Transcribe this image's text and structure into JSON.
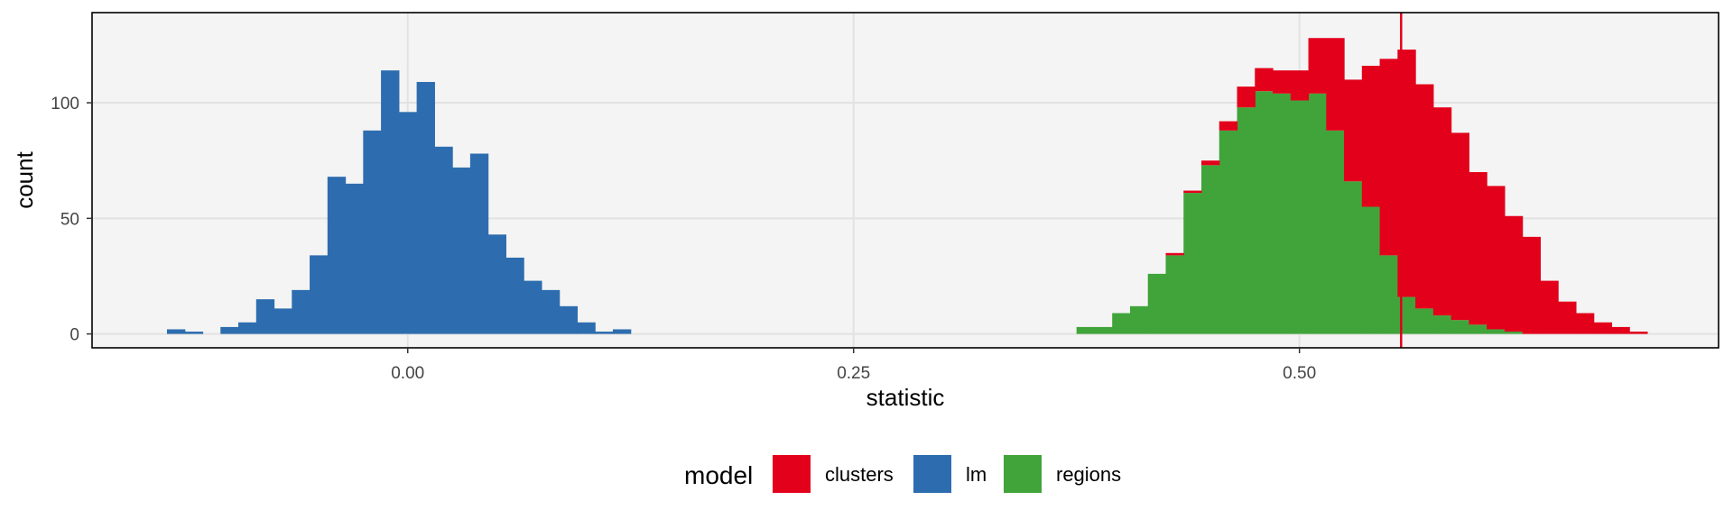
{
  "chart_data": {
    "type": "bar",
    "subtype": "stacked-histogram",
    "xlabel": "statistic",
    "ylabel": "count",
    "xlim": [
      -0.177,
      0.735
    ],
    "ylim": [
      -6,
      139
    ],
    "x_ticks": [
      0.0,
      0.25,
      0.5
    ],
    "x_tick_labels": [
      "0.00",
      "0.25",
      "0.50"
    ],
    "y_ticks": [
      0,
      50,
      100
    ],
    "y_tick_labels": [
      "0",
      "50",
      "100"
    ],
    "grid": true,
    "bin_width": 0.01,
    "reference_line": {
      "x": 0.557,
      "color": "#E3001B"
    },
    "legend": {
      "title": "model",
      "position": "bottom",
      "entries": [
        {
          "label": "clusters",
          "color": "#E3001B"
        },
        {
          "label": "lm",
          "color": "#2D6DAF"
        },
        {
          "label": "regions",
          "color": "#41A43A"
        }
      ]
    },
    "series": [
      {
        "name": "lm",
        "color": "#2D6DAF",
        "bins_start": [
          -0.135,
          -0.125,
          -0.115,
          -0.105,
          -0.095,
          -0.085,
          -0.075,
          -0.065,
          -0.055,
          -0.045,
          -0.035,
          -0.025,
          -0.015,
          -0.005,
          0.005,
          0.015,
          0.025,
          0.035,
          0.045,
          0.055,
          0.065,
          0.075,
          0.085,
          0.095,
          0.105,
          0.115
        ],
        "counts": [
          2,
          1,
          0,
          3,
          5,
          15,
          11,
          19,
          34,
          68,
          65,
          88,
          114,
          96,
          109,
          81,
          72,
          78,
          43,
          33,
          23,
          19,
          12,
          5,
          1,
          2
        ]
      },
      {
        "name": "regions",
        "color": "#41A43A",
        "bins_start": [
          0.375,
          0.385,
          0.395,
          0.405,
          0.415,
          0.425,
          0.435,
          0.445,
          0.455,
          0.465,
          0.475,
          0.485,
          0.495,
          0.505,
          0.515,
          0.525,
          0.535,
          0.545,
          0.555,
          0.565,
          0.575,
          0.585,
          0.595,
          0.605,
          0.615,
          0.625,
          0.635,
          0.645,
          0.655,
          0.665,
          0.675,
          0.685
        ],
        "counts": [
          3,
          3,
          9,
          12,
          26,
          34,
          61,
          73,
          88,
          98,
          105,
          104,
          101,
          104,
          88,
          66,
          55,
          34,
          16,
          11,
          8,
          6,
          4,
          2,
          1,
          0,
          0,
          0,
          0,
          0,
          0,
          0
        ]
      },
      {
        "name": "clusters",
        "color": "#E3001B",
        "bins_start": [
          0.375,
          0.385,
          0.395,
          0.405,
          0.415,
          0.425,
          0.435,
          0.445,
          0.455,
          0.465,
          0.475,
          0.485,
          0.495,
          0.505,
          0.515,
          0.525,
          0.535,
          0.545,
          0.555,
          0.565,
          0.575,
          0.585,
          0.595,
          0.605,
          0.615,
          0.625,
          0.635,
          0.645,
          0.655,
          0.665,
          0.675,
          0.685
        ],
        "counts": [
          0,
          0,
          0,
          0,
          0,
          1,
          1,
          2,
          4,
          9,
          10,
          10,
          13,
          24,
          40,
          44,
          61,
          85,
          107,
          97,
          90,
          81,
          66,
          62,
          50,
          42,
          23,
          14,
          9,
          5,
          3,
          1
        ]
      }
    ]
  }
}
